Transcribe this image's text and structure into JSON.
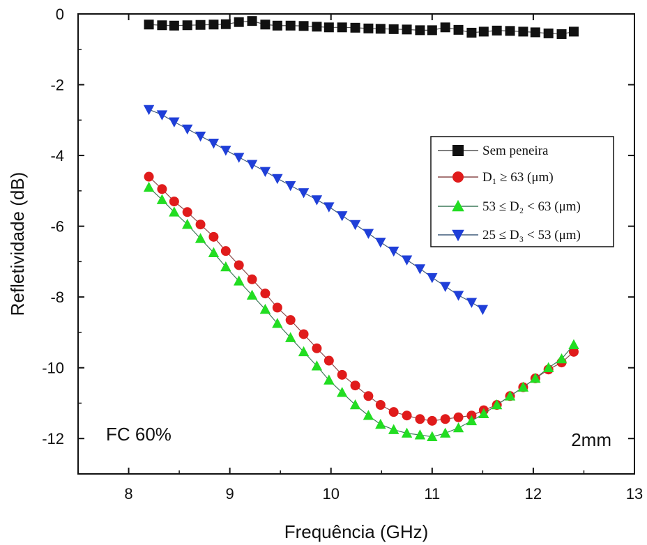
{
  "chart_data": {
    "type": "line",
    "xlabel": "Frequência (GHz)",
    "ylabel": "Refletividade (dB)",
    "xlim": [
      7.5,
      13
    ],
    "ylim": [
      -13,
      0
    ],
    "xticks": [
      8,
      9,
      10,
      11,
      12,
      13
    ],
    "yticks": [
      0,
      -2,
      -4,
      -6,
      -8,
      -10,
      -12
    ],
    "tick_labels_x": [
      "8",
      "9",
      "10",
      "11",
      "12",
      "13"
    ],
    "tick_labels_y": [
      "0",
      "-2",
      "-4",
      "-6",
      "-8",
      "-10",
      "-12"
    ],
    "legend_position": "upper-right",
    "annotations": {
      "left": "FC 60%",
      "right": "2mm"
    },
    "series": [
      {
        "name": "Sem peneira",
        "marker": "square",
        "color": "#111111",
        "x": [
          8.2,
          8.33,
          8.45,
          8.58,
          8.71,
          8.84,
          8.96,
          9.09,
          9.22,
          9.35,
          9.47,
          9.6,
          9.73,
          9.86,
          9.98,
          10.11,
          10.24,
          10.37,
          10.49,
          10.62,
          10.75,
          10.88,
          11.0,
          11.13,
          11.26,
          11.39,
          11.51,
          11.64,
          11.77,
          11.9,
          12.02,
          12.15,
          12.28,
          12.4
        ],
        "y": [
          -0.3,
          -0.32,
          -0.33,
          -0.32,
          -0.31,
          -0.3,
          -0.29,
          -0.23,
          -0.2,
          -0.3,
          -0.33,
          -0.33,
          -0.34,
          -0.36,
          -0.38,
          -0.38,
          -0.39,
          -0.41,
          -0.42,
          -0.43,
          -0.44,
          -0.46,
          -0.46,
          -0.38,
          -0.45,
          -0.53,
          -0.5,
          -0.47,
          -0.48,
          -0.5,
          -0.52,
          -0.55,
          -0.57,
          -0.5
        ]
      },
      {
        "name": "D₁ ≥ 63 (μm)",
        "marker": "circle",
        "color": "#e01b1b",
        "x": [
          8.2,
          8.33,
          8.45,
          8.58,
          8.71,
          8.84,
          8.96,
          9.09,
          9.22,
          9.35,
          9.47,
          9.6,
          9.73,
          9.86,
          9.98,
          10.11,
          10.24,
          10.37,
          10.49,
          10.62,
          10.75,
          10.88,
          11.0,
          11.13,
          11.26,
          11.39,
          11.51,
          11.64,
          11.77,
          11.9,
          12.02,
          12.15,
          12.28,
          12.4
        ],
        "y": [
          -4.6,
          -4.95,
          -5.3,
          -5.6,
          -5.95,
          -6.3,
          -6.7,
          -7.1,
          -7.5,
          -7.9,
          -8.3,
          -8.65,
          -9.05,
          -9.45,
          -9.8,
          -10.2,
          -10.5,
          -10.8,
          -11.05,
          -11.25,
          -11.35,
          -11.45,
          -11.5,
          -11.45,
          -11.4,
          -11.35,
          -11.2,
          -11.05,
          -10.8,
          -10.55,
          -10.3,
          -10.05,
          -9.85,
          -9.55
        ]
      },
      {
        "name": "53 ≤ D₂ < 63 (μm)",
        "marker": "triangle-up",
        "color": "#22dd22",
        "x": [
          8.2,
          8.33,
          8.45,
          8.58,
          8.71,
          8.84,
          8.96,
          9.09,
          9.22,
          9.35,
          9.47,
          9.6,
          9.73,
          9.86,
          9.98,
          10.11,
          10.24,
          10.37,
          10.49,
          10.62,
          10.75,
          10.88,
          11.0,
          11.13,
          11.26,
          11.39,
          11.51,
          11.64,
          11.77,
          11.9,
          12.02,
          12.15,
          12.28,
          12.4
        ],
        "y": [
          -4.9,
          -5.25,
          -5.6,
          -5.95,
          -6.35,
          -6.75,
          -7.15,
          -7.55,
          -7.95,
          -8.35,
          -8.75,
          -9.15,
          -9.55,
          -9.95,
          -10.35,
          -10.7,
          -11.05,
          -11.35,
          -11.6,
          -11.75,
          -11.85,
          -11.9,
          -11.95,
          -11.85,
          -11.7,
          -11.5,
          -11.3,
          -11.05,
          -10.8,
          -10.55,
          -10.3,
          -10.0,
          -9.75,
          -9.35
        ]
      },
      {
        "name": "25 ≤ D₃ < 53 (μm)",
        "marker": "triangle-down",
        "color": "#1f3fd8",
        "x": [
          8.2,
          8.33,
          8.45,
          8.58,
          8.71,
          8.84,
          8.96,
          9.09,
          9.22,
          9.35,
          9.47,
          9.6,
          9.73,
          9.86,
          9.98,
          10.11,
          10.24,
          10.37,
          10.49,
          10.62,
          10.75,
          10.88,
          11.0,
          11.13,
          11.26,
          11.39,
          11.5
        ],
        "y": [
          -2.7,
          -2.85,
          -3.05,
          -3.25,
          -3.45,
          -3.65,
          -3.85,
          -4.05,
          -4.25,
          -4.45,
          -4.65,
          -4.85,
          -5.05,
          -5.25,
          -5.45,
          -5.7,
          -5.95,
          -6.2,
          -6.45,
          -6.7,
          -6.95,
          -7.2,
          -7.45,
          -7.7,
          -7.95,
          -8.15,
          -8.35
        ]
      }
    ]
  }
}
